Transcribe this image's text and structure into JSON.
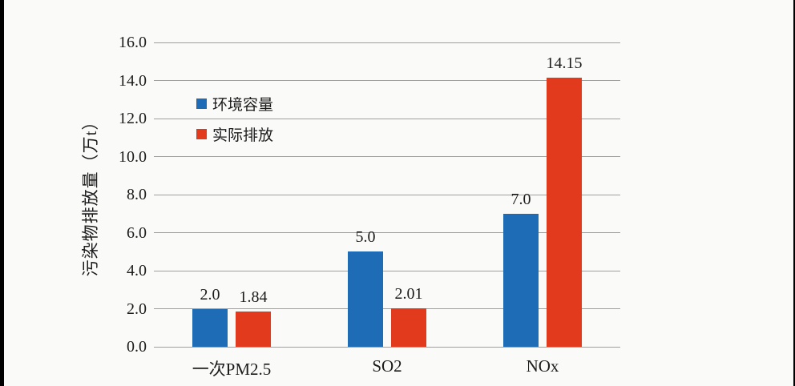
{
  "page": {
    "background": "#fafaf9",
    "letterbox_color": "#000000",
    "text_color": "#1c1c1c"
  },
  "chart_data": {
    "type": "bar",
    "title": "",
    "xlabel": "",
    "ylabel": "污染物排放量（万t）",
    "categories": [
      "一次PM2.5",
      "SO2",
      "NOx"
    ],
    "series": [
      {
        "name": "环境容量",
        "color": "#1e6cb5",
        "values": [
          2.0,
          5.0,
          7.0
        ],
        "value_labels": [
          "2.0",
          "5.0",
          "7.0"
        ]
      },
      {
        "name": "实际排放",
        "color": "#e23a1d",
        "values": [
          1.84,
          2.01,
          14.15
        ],
        "value_labels": [
          "1.84",
          "2.01",
          "14.15"
        ]
      }
    ],
    "ylim": [
      0,
      16
    ],
    "ytick_step": 2,
    "ytick_labels": [
      "0.0",
      "2.0",
      "4.0",
      "6.0",
      "8.0",
      "10.0",
      "12.0",
      "14.0",
      "16.0"
    ],
    "grid": "horizontal-only",
    "gridline_color": "#9f9f9f",
    "legend_position": "inside-upper-left"
  }
}
